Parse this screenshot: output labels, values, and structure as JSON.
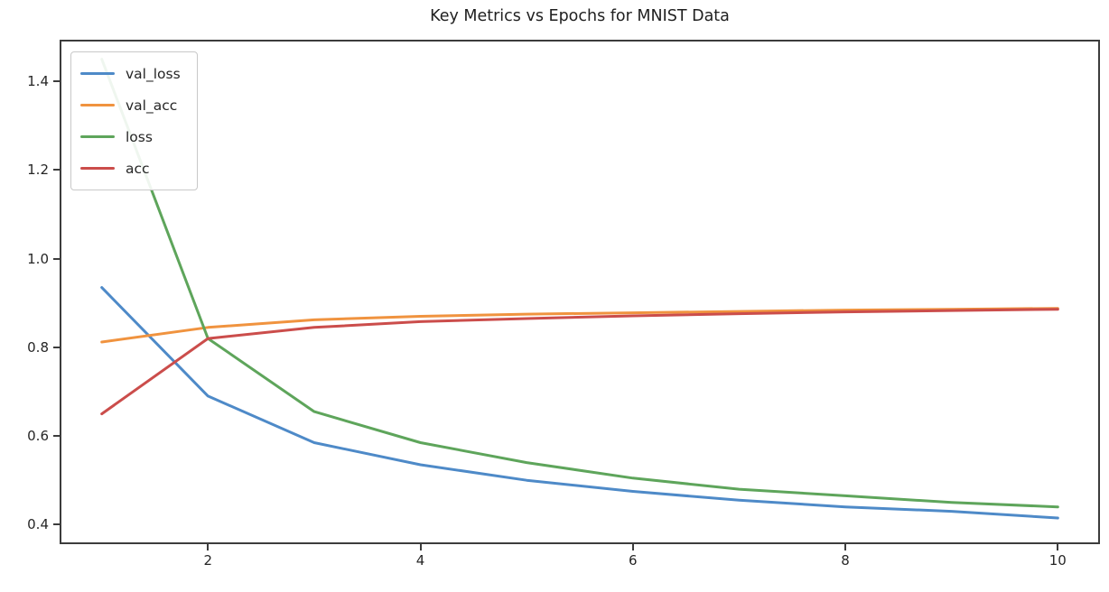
{
  "chart_data": {
    "type": "line",
    "title": "Key Metrics vs Epochs for MNIST Data",
    "xlabel": "",
    "ylabel": "",
    "x": [
      1,
      2,
      3,
      4,
      5,
      6,
      7,
      8,
      9,
      10
    ],
    "series": [
      {
        "name": "val_loss",
        "color": "#4e8ac8",
        "values": [
          0.935,
          0.69,
          0.585,
          0.535,
          0.5,
          0.475,
          0.455,
          0.44,
          0.43,
          0.415
        ]
      },
      {
        "name": "val_acc",
        "color": "#f0933f",
        "values": [
          0.812,
          0.845,
          0.862,
          0.87,
          0.875,
          0.878,
          0.881,
          0.884,
          0.886,
          0.888
        ]
      },
      {
        "name": "loss",
        "color": "#5ea55b",
        "values": [
          1.45,
          0.82,
          0.655,
          0.585,
          0.54,
          0.505,
          0.48,
          0.465,
          0.45,
          0.44
        ]
      },
      {
        "name": "acc",
        "color": "#cb4d4b",
        "values": [
          0.65,
          0.82,
          0.845,
          0.858,
          0.865,
          0.871,
          0.876,
          0.88,
          0.883,
          0.886
        ]
      }
    ],
    "xlim": [
      0.62,
      10.38
    ],
    "ylim": [
      0.36,
      1.49
    ],
    "x_ticks": [
      2,
      4,
      6,
      8,
      10
    ],
    "x_tick_labels": [
      "2",
      "4",
      "6",
      "8",
      "10"
    ],
    "y_ticks": [
      0.4,
      0.6,
      0.8,
      1.0,
      1.2,
      1.4
    ],
    "y_tick_labels": [
      "0.4",
      "0.6",
      "0.8",
      "1.0",
      "1.2",
      "1.4"
    ],
    "grid": false,
    "legend_position": "upper-left",
    "legend": [
      "val_loss",
      "val_acc",
      "loss",
      "acc"
    ],
    "line_width": 3,
    "spine_color": "#3c3c3c",
    "tick_color": "#262626",
    "title_color": "#1f1f1f"
  }
}
